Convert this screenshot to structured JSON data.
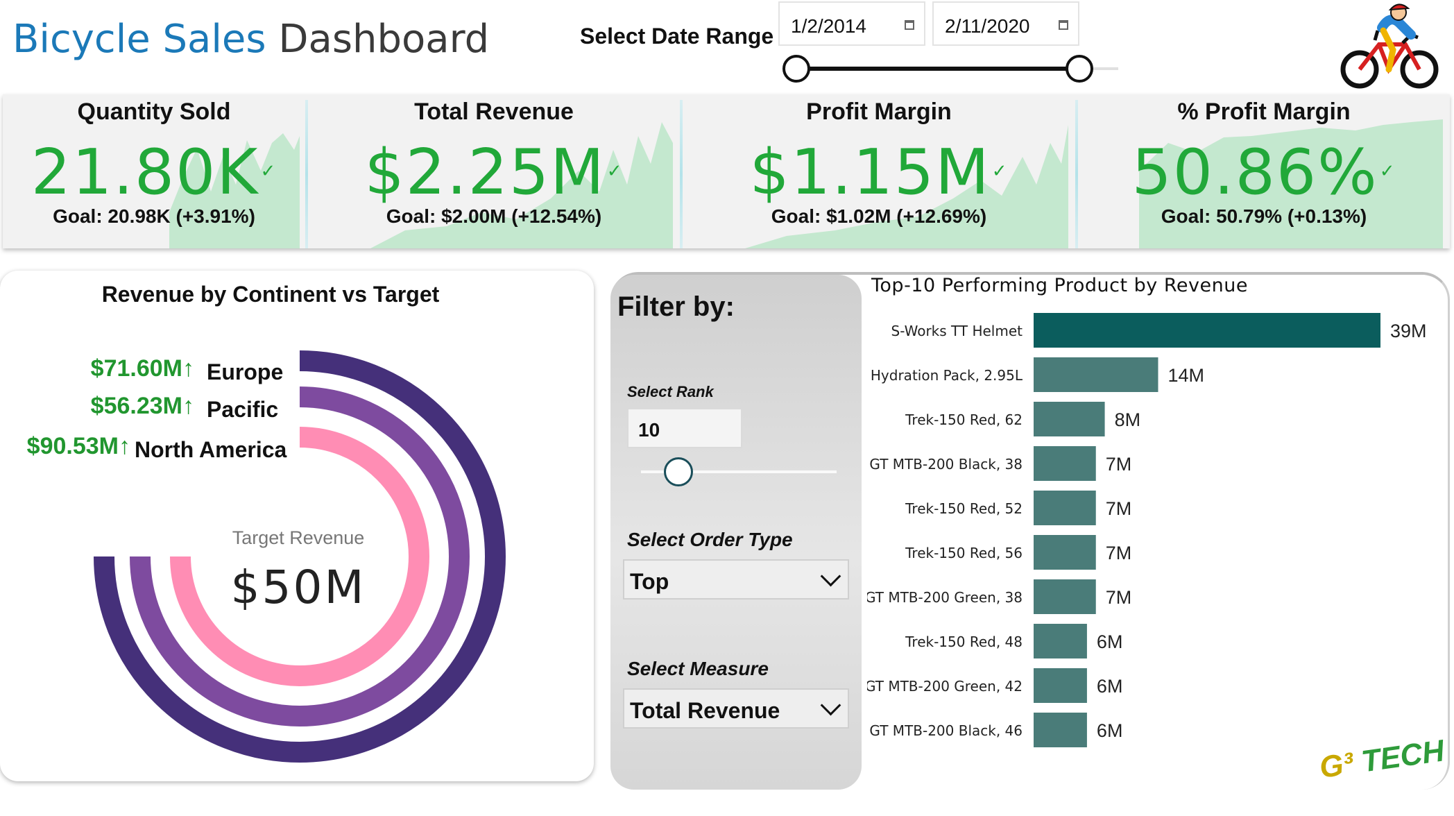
{
  "header": {
    "title_part1": "Bicycle Sales",
    "title_part2": "Dashboard",
    "date_range_label": "Select Date Range",
    "date_start": "1/2/2014",
    "date_end": "2/11/2020"
  },
  "kpis": [
    {
      "title": "Quantity Sold",
      "value": "21.80K",
      "goal": "Goal: 20.98K (+3.91%)"
    },
    {
      "title": "Total Revenue",
      "value": "$2.25M",
      "goal": "Goal: $2.00M (+12.54%)"
    },
    {
      "title": "Profit Margin",
      "value": "$1.15M",
      "goal": "Goal: $1.02M (+12.69%)"
    },
    {
      "title": "% Profit Margin",
      "value": "50.86%",
      "goal": "Goal: 50.79% (+0.13%)"
    }
  ],
  "kpi_check_symbol": "✓",
  "donut": {
    "title": "Revenue by Continent vs Target",
    "legend": [
      {
        "value": "$71.60M↑",
        "name": "Europe",
        "color": "#45307a"
      },
      {
        "value": "$56.23M↑",
        "name": "Pacific",
        "color": "#7e4b9f"
      },
      {
        "value": "$90.53M↑",
        "name": "North America",
        "color": "#ff8db4"
      }
    ],
    "target_label": "Target Revenue",
    "target_value": "$50M"
  },
  "filters": {
    "title": "Filter by:",
    "rank_label": "Select Rank",
    "rank_value": "10",
    "order_type_label": "Select Order Type",
    "order_type_value": "Top",
    "measure_label": "Select Measure",
    "measure_value": "Total Revenue"
  },
  "chart_data": {
    "type": "bar",
    "orientation": "horizontal",
    "title": "Top-10 Performing Product by Revenue",
    "categories": [
      "S-Works TT Helmet",
      "Hydration Pack, 2.95L",
      "Trek-150 Red, 62",
      "GT MTB-200 Black, 38",
      "Trek-150 Red, 52",
      "Trek-150 Red, 56",
      "GT MTB-200 Green, 38",
      "Trek-150 Red, 48",
      "GT MTB-200 Green, 42",
      "GT MTB-200 Black, 46"
    ],
    "values": [
      39,
      14,
      8,
      7,
      7,
      7,
      7,
      6,
      6,
      6
    ],
    "value_labels": [
      "39M",
      "14M",
      "8M",
      "7M",
      "7M",
      "7M",
      "7M",
      "6M",
      "6M",
      "6M"
    ],
    "colors": {
      "top_bar": "#0b5d5d",
      "other_bars": "#4a7c79"
    }
  },
  "logo": {
    "text1": "G³",
    "text2": "TECH"
  }
}
